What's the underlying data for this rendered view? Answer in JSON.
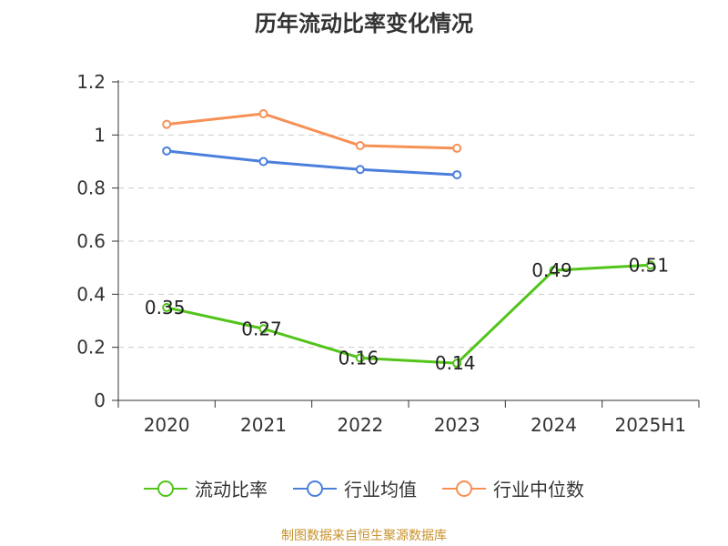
{
  "colors": {
    "liudong": "#52c41a",
    "hangye_avg": "#4a7fdc",
    "hangye_median": "#f79055"
  },
  "chart_data": {
    "type": "line",
    "title": "历年流动比率变化情况",
    "categories": [
      "2020",
      "2021",
      "2022",
      "2023",
      "2024",
      "2025H1"
    ],
    "ylim": [
      0,
      1.2
    ],
    "yticks": [
      0,
      0.2,
      0.4,
      0.6,
      0.8,
      1,
      1.2
    ],
    "ytick_labels": [
      "0",
      "0.2",
      "0.4",
      "0.6",
      "0.8",
      "1",
      "1.2"
    ],
    "grid": true,
    "legend_position": "bottom",
    "series": [
      {
        "name": "流动比率",
        "values": [
          0.35,
          0.27,
          0.16,
          0.14,
          0.49,
          0.51
        ],
        "labels": [
          "0.35",
          "0.27",
          "0.16",
          "0.14",
          "0.49",
          "0.51"
        ]
      },
      {
        "name": "行业均值",
        "values": [
          0.94,
          0.9,
          0.87,
          0.85,
          null,
          null
        ]
      },
      {
        "name": "行业中位数",
        "values": [
          1.04,
          1.08,
          0.96,
          0.95,
          null,
          null
        ]
      }
    ]
  },
  "source_text": "制图数据来自恒生聚源数据库"
}
